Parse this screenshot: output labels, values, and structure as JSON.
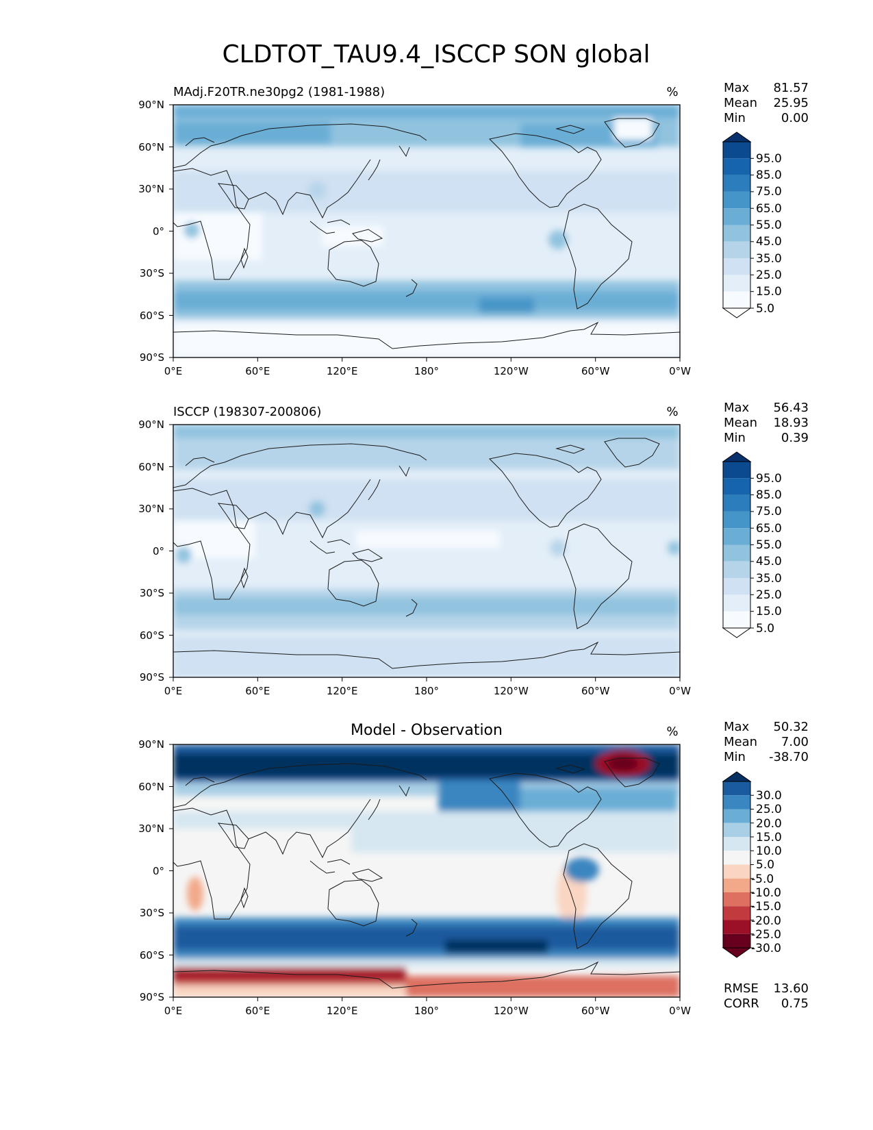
{
  "title": "CLDTOT_TAU9.4_ISCCP SON global",
  "axes": {
    "y_ticks": [
      "90°N",
      "60°N",
      "30°N",
      "0°",
      "30°S",
      "60°S",
      "90°S"
    ],
    "x_ticks": [
      "0°E",
      "60°E",
      "120°E",
      "180°",
      "120°W",
      "60°W",
      "0°W"
    ]
  },
  "panels": [
    {
      "id": "model",
      "left_title": "MAdj.F20TR.ne30pg2 (1981-1988)",
      "center_title": "",
      "units": "%",
      "stats": [
        {
          "label": "Max",
          "value": "81.57"
        },
        {
          "label": "Mean",
          "value": "25.95"
        },
        {
          "label": "Min",
          "value": "0.00"
        }
      ],
      "colorbar": {
        "labels": [
          "95.0",
          "85.0",
          "75.0",
          "65.0",
          "55.0",
          "45.0",
          "35.0",
          "25.0",
          "15.0",
          "5.0"
        ],
        "colors": [
          "#08306b",
          "#0b4a8f",
          "#1664ab",
          "#2c7dbb",
          "#4695c8",
          "#6aaed6",
          "#91c3df",
          "#b6d4e9",
          "#cfe1f2",
          "#e3eef8",
          "#f7fbff"
        ]
      },
      "footer_stats": []
    },
    {
      "id": "obs",
      "left_title": "ISCCP (198307-200806)",
      "center_title": "",
      "units": "%",
      "stats": [
        {
          "label": "Max",
          "value": "56.43"
        },
        {
          "label": "Mean",
          "value": "18.93"
        },
        {
          "label": "Min",
          "value": "0.39"
        }
      ],
      "colorbar": {
        "labels": [
          "95.0",
          "85.0",
          "75.0",
          "65.0",
          "55.0",
          "45.0",
          "35.0",
          "25.0",
          "15.0",
          "5.0"
        ],
        "colors": [
          "#08306b",
          "#0b4a8f",
          "#1664ab",
          "#2c7dbb",
          "#4695c8",
          "#6aaed6",
          "#91c3df",
          "#b6d4e9",
          "#cfe1f2",
          "#e3eef8",
          "#f7fbff"
        ]
      },
      "footer_stats": []
    },
    {
      "id": "diff",
      "left_title": "",
      "center_title": "Model - Observation",
      "units": "%",
      "stats": [
        {
          "label": "Max",
          "value": "50.32"
        },
        {
          "label": "Mean",
          "value": "7.00"
        },
        {
          "label": "Min",
          "value": "-38.70"
        }
      ],
      "colorbar": {
        "labels": [
          "30.0",
          "25.0",
          "20.0",
          "15.0",
          "10.0",
          "5.0",
          "-5.0",
          "-10.0",
          "-15.0",
          "-20.0",
          "-25.0",
          "-30.0"
        ],
        "colors": [
          "#053061",
          "#1a5a9e",
          "#3a86c0",
          "#6aaed6",
          "#a8cfe5",
          "#d6e7f1",
          "#f5f5f5",
          "#f9d5c2",
          "#f2a989",
          "#dd7060",
          "#c13b3e",
          "#9b1027",
          "#67001f"
        ]
      },
      "footer_stats": [
        {
          "label": "RMSE",
          "value": "13.60"
        },
        {
          "label": "CORR",
          "value": "0.75"
        }
      ]
    }
  ]
}
